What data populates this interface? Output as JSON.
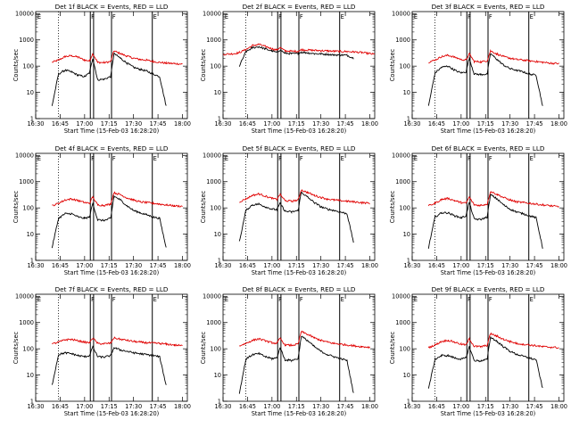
{
  "chart_data": {
    "type": "line",
    "shared": {
      "xlabel": "Start Time (15-Feb-03 16:28:20)",
      "ylabel": "Counts/sec",
      "x_ticks": [
        "16:30",
        "16:45",
        "17:00",
        "17:15",
        "17:30",
        "17:45",
        "18:00"
      ],
      "y_ticks": [
        "1",
        "10",
        "100",
        "1000",
        "10000"
      ],
      "y_scale": "log",
      "ylim": [
        1,
        12000
      ],
      "xlim_minutes_after_1630": [
        0,
        93
      ],
      "series": [
        {
          "name": "Events",
          "color": "#000000"
        },
        {
          "name": "LLD",
          "color": "#e00000"
        }
      ],
      "marker_colors": {
        "dotted": "#000000",
        "solid": "#000000"
      }
    },
    "panels": [
      {
        "title": "Det 1f BLACK = Events, RED = LLD",
        "region_labels": [
          "E",
          "F",
          "F",
          "E"
        ],
        "region_label_minutes": [
          1,
          34,
          47,
          72
        ],
        "solid_lines_minutes": [
          33.5,
          35.5,
          46.5,
          71.5
        ],
        "dotted_lines_minutes": [
          14
        ],
        "x_minutes": [
          0,
          7,
          10,
          14,
          18,
          22,
          26,
          30,
          33,
          35,
          38,
          42,
          46,
          48,
          52,
          56,
          60,
          64,
          68,
          72,
          76,
          80,
          85,
          90,
          93
        ],
        "events": [
          null,
          null,
          3,
          50,
          70,
          60,
          45,
          40,
          55,
          200,
          30,
          32,
          40,
          300,
          200,
          130,
          90,
          75,
          65,
          50,
          40,
          3,
          null,
          null,
          null
        ],
        "lld": [
          null,
          null,
          140,
          170,
          230,
          250,
          220,
          170,
          160,
          300,
          140,
          135,
          150,
          380,
          300,
          240,
          200,
          180,
          170,
          150,
          140,
          130,
          125,
          120,
          null
        ]
      },
      {
        "title": "Det 2f BLACK = Events, RED = LLD",
        "region_labels": [
          "E",
          "F",
          "F",
          "E"
        ],
        "region_label_minutes": [
          1,
          34,
          47,
          72
        ],
        "solid_lines_minutes": [
          33.5,
          35.5,
          46.5,
          71.5
        ],
        "dotted_lines_minutes": [
          14
        ],
        "x_minutes": [
          0,
          7,
          10,
          14,
          18,
          22,
          26,
          30,
          33,
          35,
          38,
          42,
          46,
          48,
          52,
          56,
          60,
          64,
          68,
          72,
          76,
          80,
          85,
          90,
          93
        ],
        "events": [
          null,
          null,
          100,
          350,
          500,
          550,
          450,
          380,
          330,
          420,
          310,
          300,
          300,
          340,
          320,
          300,
          290,
          280,
          270,
          265,
          260,
          200,
          null,
          null,
          null
        ],
        "lld": [
          280,
          300,
          330,
          430,
          600,
          680,
          560,
          460,
          410,
          520,
          380,
          370,
          370,
          420,
          410,
          400,
          390,
          380,
          370,
          365,
          360,
          350,
          330,
          300,
          280
        ]
      },
      {
        "title": "Det 3f BLACK = Events, RED = LLD",
        "region_labels": [
          "E",
          "F",
          "F",
          "E"
        ],
        "region_label_minutes": [
          1,
          34,
          47,
          72
        ],
        "solid_lines_minutes": [
          33.5,
          35.5,
          46.5,
          71.5
        ],
        "dotted_lines_minutes": [
          14
        ],
        "x_minutes": [
          0,
          7,
          10,
          14,
          18,
          22,
          26,
          30,
          33,
          35,
          38,
          42,
          46,
          48,
          52,
          56,
          60,
          64,
          68,
          72,
          76,
          80,
          85,
          90,
          93
        ],
        "events": [
          null,
          null,
          3,
          55,
          90,
          100,
          70,
          55,
          60,
          200,
          50,
          48,
          50,
          300,
          180,
          110,
          80,
          70,
          60,
          50,
          45,
          3,
          null,
          null,
          null
        ],
        "lld": [
          null,
          null,
          140,
          170,
          230,
          260,
          220,
          180,
          170,
          300,
          150,
          145,
          160,
          380,
          290,
          230,
          200,
          180,
          170,
          160,
          150,
          140,
          130,
          125,
          null
        ]
      },
      {
        "title": "Det 4f BLACK = Events, RED = LLD",
        "region_labels": [
          "E",
          "F",
          "F",
          "E"
        ],
        "region_label_minutes": [
          1,
          34,
          47,
          72
        ],
        "solid_lines_minutes": [
          33.5,
          35.5,
          46.5,
          71.5
        ],
        "dotted_lines_minutes": [
          14
        ],
        "x_minutes": [
          0,
          7,
          10,
          14,
          18,
          22,
          26,
          30,
          33,
          35,
          38,
          42,
          46,
          48,
          52,
          56,
          60,
          64,
          68,
          72,
          76,
          80,
          85,
          90,
          93
        ],
        "events": [
          null,
          null,
          3,
          40,
          60,
          60,
          45,
          40,
          45,
          150,
          35,
          33,
          40,
          280,
          200,
          120,
          80,
          65,
          55,
          45,
          40,
          3,
          null,
          null,
          null
        ],
        "lld": [
          null,
          null,
          120,
          150,
          200,
          220,
          190,
          160,
          150,
          260,
          130,
          125,
          140,
          380,
          320,
          240,
          200,
          170,
          160,
          150,
          140,
          130,
          120,
          115,
          null
        ]
      },
      {
        "title": "Det 5f BLACK = Events, RED = LLD",
        "region_labels": [
          "E",
          "F",
          "F",
          "E"
        ],
        "region_label_minutes": [
          1,
          34,
          47,
          72
        ],
        "solid_lines_minutes": [
          33.5,
          35.5,
          46.5,
          71.5
        ],
        "dotted_lines_minutes": [
          14
        ],
        "x_minutes": [
          0,
          7,
          10,
          14,
          18,
          22,
          26,
          30,
          33,
          35,
          38,
          42,
          46,
          48,
          52,
          56,
          60,
          64,
          68,
          72,
          76,
          80,
          85,
          90,
          93
        ],
        "events": [
          null,
          null,
          5,
          80,
          130,
          140,
          110,
          90,
          85,
          150,
          75,
          70,
          80,
          400,
          250,
          160,
          110,
          90,
          80,
          70,
          60,
          5,
          null,
          null,
          null
        ],
        "lld": [
          null,
          null,
          170,
          220,
          300,
          340,
          280,
          230,
          210,
          330,
          190,
          180,
          200,
          480,
          380,
          300,
          250,
          220,
          200,
          190,
          180,
          170,
          160,
          150,
          null
        ]
      },
      {
        "title": "Det 6f BLACK = Events, RED = LLD",
        "region_labels": [
          "E",
          "F",
          "F",
          "E"
        ],
        "region_label_minutes": [
          1,
          34,
          47,
          72
        ],
        "solid_lines_minutes": [
          33.5,
          35.5,
          46.5,
          71.5
        ],
        "dotted_lines_minutes": [
          14
        ],
        "x_minutes": [
          0,
          7,
          10,
          14,
          18,
          22,
          26,
          30,
          33,
          35,
          38,
          42,
          46,
          48,
          52,
          56,
          60,
          64,
          68,
          72,
          76,
          80,
          85,
          90,
          93
        ],
        "events": [
          null,
          null,
          3,
          45,
          65,
          65,
          50,
          42,
          50,
          160,
          38,
          36,
          45,
          320,
          220,
          130,
          90,
          70,
          60,
          50,
          42,
          3,
          null,
          null,
          null
        ],
        "lld": [
          null,
          null,
          120,
          150,
          210,
          230,
          190,
          160,
          150,
          260,
          130,
          125,
          140,
          420,
          330,
          250,
          200,
          170,
          160,
          150,
          140,
          130,
          120,
          110,
          null
        ]
      },
      {
        "title": "Det 7f BLACK = Events, RED = LLD",
        "region_labels": [
          "E",
          "F",
          "F",
          "E"
        ],
        "region_label_minutes": [
          1,
          34,
          47,
          72
        ],
        "solid_lines_minutes": [
          33.5,
          35.5,
          46.5,
          71.5
        ],
        "dotted_lines_minutes": [
          14
        ],
        "x_minutes": [
          0,
          7,
          10,
          14,
          18,
          22,
          26,
          30,
          33,
          35,
          38,
          42,
          46,
          48,
          52,
          56,
          60,
          64,
          68,
          72,
          76,
          80,
          85,
          90,
          93
        ],
        "events": [
          null,
          null,
          4,
          60,
          70,
          65,
          55,
          50,
          55,
          120,
          50,
          48,
          55,
          110,
          90,
          80,
          70,
          65,
          60,
          55,
          50,
          4,
          null,
          null,
          null
        ],
        "lld": [
          null,
          null,
          150,
          180,
          220,
          230,
          200,
          180,
          170,
          260,
          160,
          155,
          165,
          260,
          230,
          210,
          190,
          180,
          170,
          165,
          160,
          150,
          140,
          130,
          null
        ]
      },
      {
        "title": "Det 8f BLACK = Events, RED = LLD",
        "region_labels": [
          "E",
          "F",
          "F",
          "E"
        ],
        "region_label_minutes": [
          1,
          34,
          47,
          72
        ],
        "solid_lines_minutes": [
          33.5,
          35.5,
          46.5,
          71.5
        ],
        "dotted_lines_minutes": [
          14
        ],
        "x_minutes": [
          0,
          7,
          10,
          14,
          18,
          22,
          26,
          30,
          33,
          35,
          38,
          42,
          46,
          48,
          52,
          56,
          60,
          64,
          68,
          72,
          76,
          80,
          85,
          90,
          93
        ],
        "events": [
          null,
          null,
          2,
          40,
          60,
          65,
          50,
          42,
          45,
          110,
          38,
          36,
          42,
          300,
          200,
          120,
          80,
          60,
          50,
          42,
          36,
          2,
          null,
          null,
          null
        ],
        "lld": [
          null,
          null,
          130,
          160,
          210,
          240,
          200,
          170,
          160,
          250,
          140,
          135,
          150,
          450,
          350,
          260,
          210,
          180,
          160,
          150,
          140,
          130,
          120,
          115,
          null
        ]
      },
      {
        "title": "Det 9f BLACK = Events, RED = LLD",
        "region_labels": [
          "E",
          "F",
          "F",
          "E"
        ],
        "region_label_minutes": [
          1,
          34,
          47,
          72
        ],
        "solid_lines_minutes": [
          33.5,
          35.5,
          46.5,
          71.5
        ],
        "dotted_lines_minutes": [
          14
        ],
        "x_minutes": [
          0,
          7,
          10,
          14,
          18,
          22,
          26,
          30,
          33,
          35,
          38,
          42,
          46,
          48,
          52,
          56,
          60,
          64,
          68,
          72,
          76,
          80,
          85,
          90,
          93
        ],
        "events": [
          null,
          null,
          3,
          40,
          55,
          55,
          45,
          40,
          45,
          120,
          36,
          34,
          40,
          280,
          190,
          120,
          80,
          62,
          52,
          44,
          38,
          3,
          null,
          null,
          null
        ],
        "lld": [
          null,
          null,
          110,
          140,
          190,
          210,
          180,
          150,
          140,
          240,
          125,
          120,
          135,
          380,
          300,
          230,
          190,
          160,
          150,
          140,
          130,
          120,
          115,
          110,
          null
        ]
      }
    ]
  }
}
